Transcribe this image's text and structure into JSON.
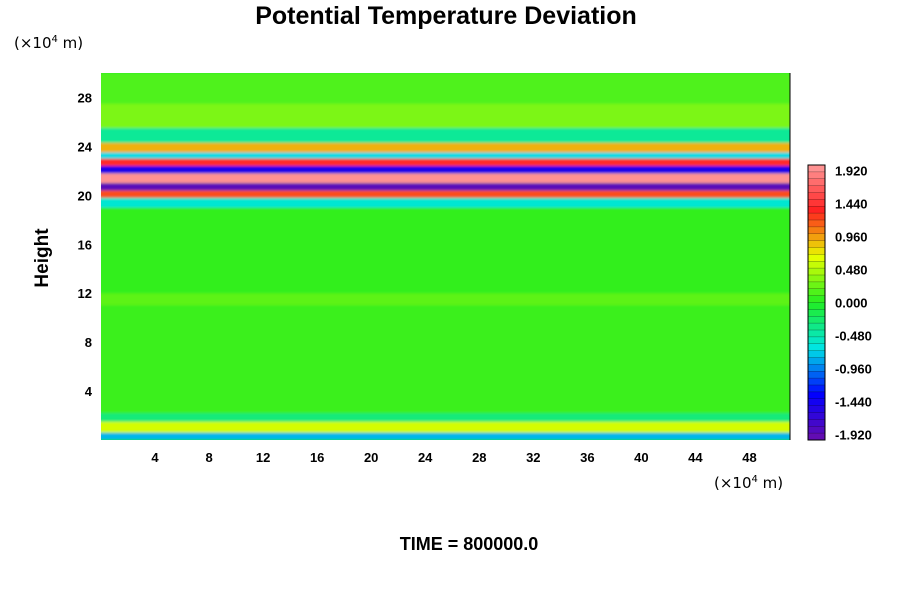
{
  "chart_data": {
    "type": "heatmap",
    "title": "Potential Temperature Deviation",
    "ylabel": "Height",
    "xunit_prefix": "(×10",
    "xunit_exp": "4",
    "xunit_suffix": " m)",
    "yunit_prefix": "(×10",
    "yunit_exp": "4",
    "yunit_suffix": " m)",
    "xlim": [
      0,
      51
    ],
    "ylim": [
      0,
      30
    ],
    "xticks": [
      "4",
      "8",
      "12",
      "16",
      "20",
      "24",
      "28",
      "32",
      "36",
      "40",
      "44",
      "48"
    ],
    "xtick_values": [
      4,
      8,
      12,
      16,
      20,
      24,
      28,
      32,
      36,
      40,
      44,
      48
    ],
    "yticks": [
      "4",
      "8",
      "12",
      "16",
      "20",
      "24",
      "28"
    ],
    "ytick_values": [
      4,
      8,
      12,
      16,
      20,
      24,
      28
    ],
    "colorbar": {
      "min": -2.0,
      "max": 2.0,
      "labels": [
        "1.920",
        "1.440",
        "0.960",
        "0.480",
        "0.000",
        "-0.480",
        "-0.960",
        "-1.440",
        "-1.920"
      ],
      "label_values": [
        1.92,
        1.44,
        0.96,
        0.48,
        0.0,
        -0.48,
        -0.96,
        -1.44,
        -1.92
      ]
    },
    "colors": {
      "neg_max": "#6a0dad",
      "blue": "#0000ff",
      "cyan": "#00e5e5",
      "green": "#22ee22",
      "yellow": "#e8ff00",
      "red": "#ff2020",
      "pos_max": "#ff9b9b"
    },
    "field_bands": [
      {
        "y_from": 0.0,
        "y_to": 0.6,
        "value": -0.8
      },
      {
        "y_from": 0.6,
        "y_to": 1.5,
        "value": 0.6
      },
      {
        "y_from": 1.5,
        "y_to": 2.2,
        "value": -0.3
      },
      {
        "y_from": 2.2,
        "y_to": 11.0,
        "value": 0.08
      },
      {
        "y_from": 11.0,
        "y_to": 12.0,
        "value": 0.2
      },
      {
        "y_from": 12.0,
        "y_to": 19.0,
        "value": 0.05
      },
      {
        "y_from": 19.0,
        "y_to": 19.8,
        "value": -0.6
      },
      {
        "y_from": 19.8,
        "y_to": 20.4,
        "value": 1.2
      },
      {
        "y_from": 20.4,
        "y_to": 21.0,
        "value": -1.9
      },
      {
        "y_from": 21.0,
        "y_to": 21.8,
        "value": 1.95
      },
      {
        "y_from": 21.8,
        "y_to": 22.4,
        "value": -1.5
      },
      {
        "y_from": 22.4,
        "y_to": 23.0,
        "value": 1.4
      },
      {
        "y_from": 23.0,
        "y_to": 23.5,
        "value": -0.7
      },
      {
        "y_from": 23.5,
        "y_to": 24.3,
        "value": 0.9
      },
      {
        "y_from": 24.3,
        "y_to": 25.5,
        "value": -0.4
      },
      {
        "y_from": 25.5,
        "y_to": 27.5,
        "value": 0.3
      },
      {
        "y_from": 27.5,
        "y_to": 30.0,
        "value": 0.15
      }
    ],
    "footer_label": "TIME = 800000.0"
  }
}
